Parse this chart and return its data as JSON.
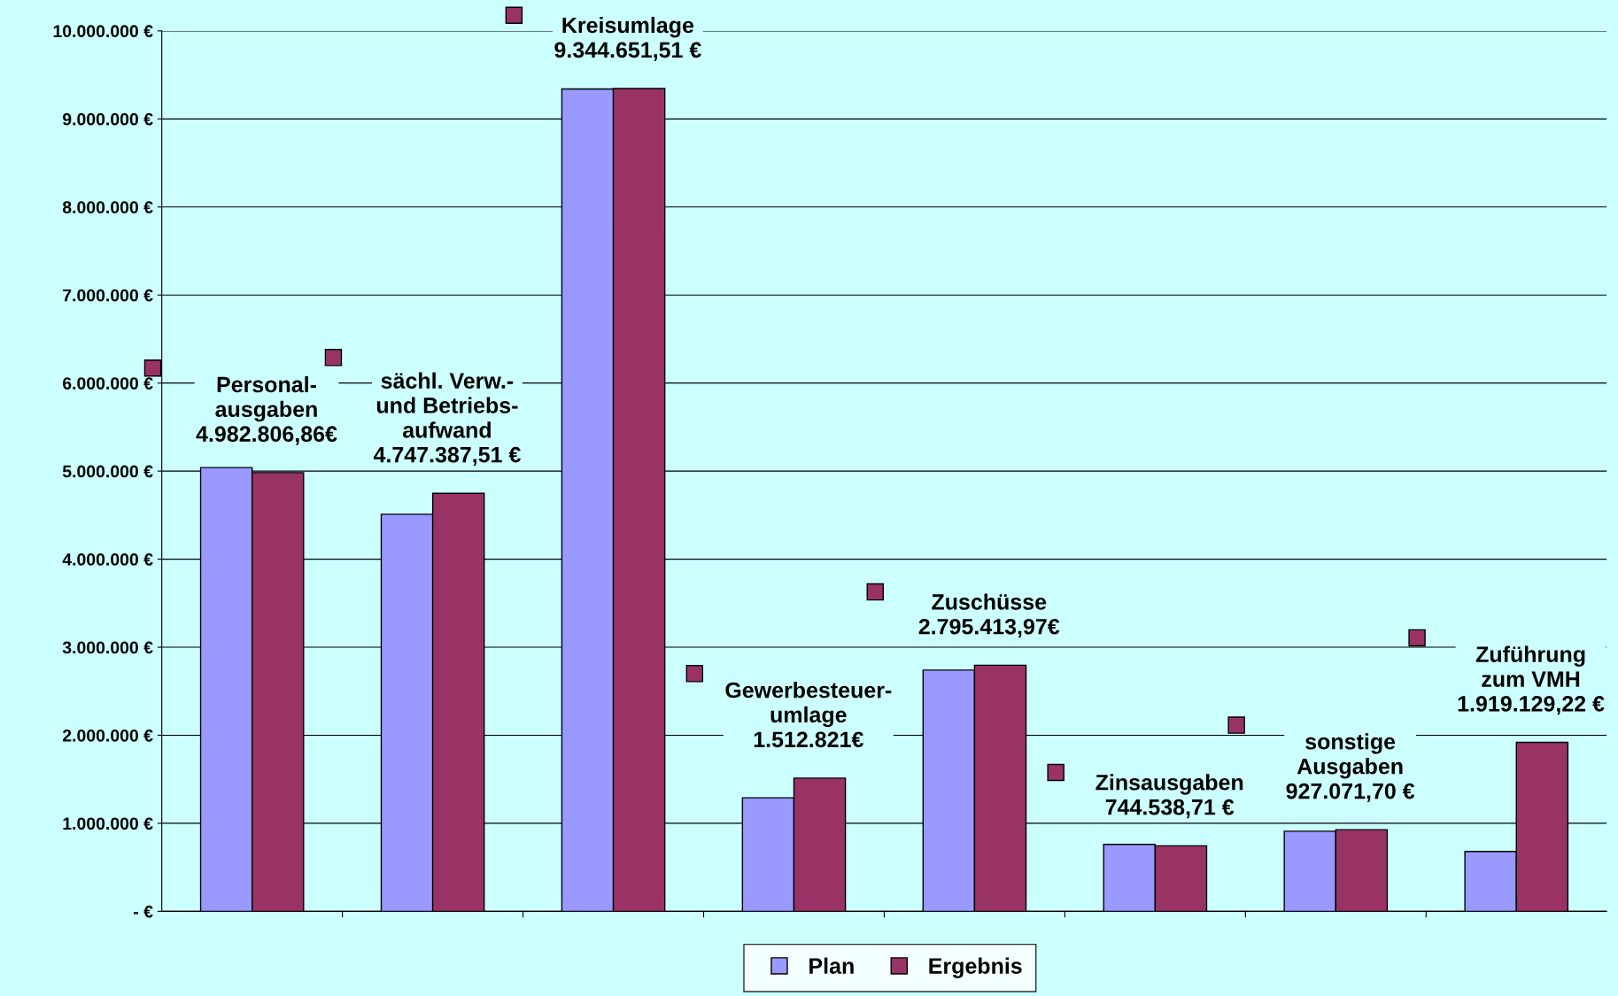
{
  "chart_data": {
    "type": "bar",
    "categories": [
      null,
      null,
      null,
      null,
      null,
      null,
      null,
      null
    ],
    "series": [
      {
        "name": "Plan",
        "color": "#9999ff",
        "values": [
          5040000,
          4510000,
          9340000,
          1290000,
          2740000,
          760000,
          910000,
          680000
        ]
      },
      {
        "name": "Ergebnis",
        "color": "#993366",
        "values": [
          4982806.86,
          4747387.51,
          9344651.51,
          1512821,
          2795413.97,
          744538.71,
          927071.7,
          1919129.22
        ]
      }
    ],
    "annotations": [
      "Personal-\nausgaben\n4.982.806,86€",
      "sächl. Verw.-\nund Betriebs-\naufwand\n4.747.387,51 €",
      "Kreisumlage\n9.344.651,51 €",
      "Gewerbesteuer-\numlage\n1.512.821€",
      "Zuschüsse\n2.795.413,97€",
      "Zinsausgaben\n744.538,71 €",
      "sonstige\nAusgaben\n927.071,70 €",
      "Zuführung\nzum VMH\n1.919.129,22 €"
    ],
    "ylim": [
      0,
      10000000
    ],
    "yticks": [
      {
        "value": 0,
        "label": "- €"
      },
      {
        "value": 1000000,
        "label": "1.000.000 €"
      },
      {
        "value": 2000000,
        "label": "2.000.000 €"
      },
      {
        "value": 3000000,
        "label": "3.000.000 €"
      },
      {
        "value": 4000000,
        "label": "4.000.000 €"
      },
      {
        "value": 5000000,
        "label": "5.000.000 €"
      },
      {
        "value": 6000000,
        "label": "6.000.000 €"
      },
      {
        "value": 7000000,
        "label": "7.000.000 €"
      },
      {
        "value": 8000000,
        "label": "8.000.000 €"
      },
      {
        "value": 9000000,
        "label": "9.000.000 €"
      },
      {
        "value": 10000000,
        "label": "10.000.000 €"
      }
    ],
    "grid": "y",
    "legend": "bottom",
    "tick_labels": "y"
  }
}
